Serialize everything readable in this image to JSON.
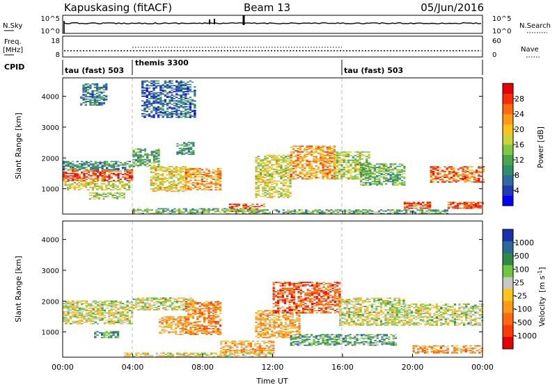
{
  "header": {
    "station": "Kapuskasing (fitACF)",
    "beam": "Beam 13",
    "date": "05/Jun/2016"
  },
  "noise_panel": {
    "left_label": "N.Sky",
    "right_label": "N.Search",
    "left_ticks": [
      "10^5",
      "10^0"
    ],
    "right_ticks": [
      "10^5",
      "10^0"
    ]
  },
  "freq_panel": {
    "left_label_1": "Freq.",
    "left_label_2": "[MHz]",
    "left_ticks": [
      "18",
      "8"
    ],
    "right_label": "Nave",
    "right_ticks": [
      "60",
      "0"
    ]
  },
  "cpid_panel": {
    "label": "CPID",
    "segments": [
      {
        "label": "tau (fast) 503",
        "start_hour": 0
      },
      {
        "label": "themis 3300",
        "start_hour": 4
      },
      {
        "label": "tau (fast) 503",
        "start_hour": 16
      }
    ]
  },
  "axes": {
    "x_label": "Time UT",
    "x_ticks": [
      "00:00",
      "04:00",
      "08:00",
      "12:00",
      "16:00",
      "20:00",
      "00:00"
    ],
    "y_label": "Slant Range [km]",
    "y_ticks": [
      "1000",
      "2000",
      "3000",
      "4000"
    ]
  },
  "colorbars": {
    "power": {
      "label": "Power [dB]",
      "ticks": [
        "4",
        "8",
        "12",
        "16",
        "20",
        "24",
        "28"
      ],
      "colors": [
        "#0000ff",
        "#1f3cb5",
        "#2e6b9e",
        "#2f8f6a",
        "#49a84c",
        "#7ec844",
        "#c9d43a",
        "#ffc21a",
        "#ff9a14",
        "#ff6a0e",
        "#ff2a08",
        "#e80000"
      ]
    },
    "velocity": {
      "label_main": "Velocity",
      "label_unit": "[m s",
      "label_sup": "-1",
      "label_close": "]",
      "ticks": [
        "1000",
        "500",
        "100",
        "25",
        "-25",
        "-100",
        "-500",
        "-1000"
      ],
      "colors": [
        "#1b2fb0",
        "#2a6a9a",
        "#2f8a4a",
        "#6cc83c",
        "#c8c8c0",
        "#ffc21a",
        "#ff9a14",
        "#ff6a0e",
        "#ff3a08",
        "#e80000"
      ]
    }
  },
  "chart_data": {
    "type": "heatmap",
    "x_range_hours": [
      0,
      24
    ],
    "y_range_km": [
      180,
      4600
    ],
    "power_regions": [
      {
        "t0": 0.0,
        "t1": 4.0,
        "r0": 1250,
        "r1": 1600,
        "level": 0.85
      },
      {
        "t0": 0.0,
        "t1": 4.0,
        "r0": 1600,
        "r1": 1900,
        "level": 0.3
      },
      {
        "t0": 0.1,
        "t1": 3.8,
        "r0": 950,
        "r1": 1250,
        "level": 0.55
      },
      {
        "t0": 1.5,
        "t1": 3.5,
        "r0": 650,
        "r1": 850,
        "level": 0.5
      },
      {
        "t0": 4.0,
        "t1": 5.5,
        "r0": 1700,
        "r1": 2300,
        "level": 0.35
      },
      {
        "t0": 5.0,
        "t1": 7.0,
        "r0": 900,
        "r1": 1700,
        "level": 0.6
      },
      {
        "t0": 7.0,
        "t1": 9.0,
        "r0": 950,
        "r1": 1650,
        "level": 0.7
      },
      {
        "t0": 9.5,
        "t1": 11.5,
        "r0": 250,
        "r1": 500,
        "level": 0.85
      },
      {
        "t0": 11.0,
        "t1": 13.0,
        "r0": 700,
        "r1": 2100,
        "level": 0.55
      },
      {
        "t0": 13.0,
        "t1": 15.5,
        "r0": 1300,
        "r1": 2400,
        "level": 0.7
      },
      {
        "t0": 15.5,
        "t1": 17.5,
        "r0": 1300,
        "r1": 2200,
        "level": 0.5
      },
      {
        "t0": 17.0,
        "t1": 19.5,
        "r0": 1100,
        "r1": 1800,
        "level": 0.4
      },
      {
        "t0": 19.5,
        "t1": 21.0,
        "r0": 350,
        "r1": 550,
        "level": 0.85
      },
      {
        "t0": 21.0,
        "t1": 24.0,
        "r0": 1200,
        "r1": 1700,
        "level": 0.8
      },
      {
        "t0": 22.0,
        "t1": 24.0,
        "r0": 350,
        "r1": 550,
        "level": 0.85
      },
      {
        "t0": 4.0,
        "t1": 11.0,
        "r0": 180,
        "r1": 350,
        "level": 0.4
      },
      {
        "t0": 11.0,
        "t1": 22.0,
        "r0": 180,
        "r1": 320,
        "level": 0.35
      },
      {
        "t0": 4.5,
        "t1": 7.5,
        "r0": 3300,
        "r1": 4500,
        "level": 0.2
      },
      {
        "t0": 1.0,
        "t1": 2.5,
        "r0": 3700,
        "r1": 4400,
        "level": 0.25
      },
      {
        "t0": 6.5,
        "t1": 7.5,
        "r0": 2100,
        "r1": 2500,
        "level": 0.3
      }
    ],
    "velocity_regions": [
      {
        "t0": 0.0,
        "t1": 4.0,
        "r0": 1250,
        "r1": 1600,
        "level": 0.45
      },
      {
        "t0": 0.0,
        "t1": 4.0,
        "r0": 1600,
        "r1": 2000,
        "level": 0.45
      },
      {
        "t0": 1.8,
        "t1": 3.2,
        "r0": 800,
        "r1": 1000,
        "level": 0.25
      },
      {
        "t0": 4.0,
        "t1": 7.5,
        "r0": 1700,
        "r1": 2100,
        "level": 0.45
      },
      {
        "t0": 5.5,
        "t1": 7.0,
        "r0": 900,
        "r1": 1500,
        "level": 0.6
      },
      {
        "t0": 7.0,
        "t1": 9.0,
        "r0": 900,
        "r1": 2000,
        "level": 0.7
      },
      {
        "t0": 9.0,
        "t1": 12.0,
        "r0": 300,
        "r1": 700,
        "level": 0.62
      },
      {
        "t0": 11.0,
        "t1": 13.5,
        "r0": 800,
        "r1": 1700,
        "level": 0.62
      },
      {
        "t0": 12.0,
        "t1": 15.8,
        "r0": 1600,
        "r1": 2600,
        "level": 0.8
      },
      {
        "t0": 15.8,
        "t1": 19.5,
        "r0": 1200,
        "r1": 2100,
        "level": 0.45
      },
      {
        "t0": 19.5,
        "t1": 24.0,
        "r0": 1200,
        "r1": 1900,
        "level": 0.45
      },
      {
        "t0": 20.0,
        "t1": 24.0,
        "r0": 300,
        "r1": 550,
        "level": 0.65
      },
      {
        "t0": 13.0,
        "t1": 19.0,
        "r0": 550,
        "r1": 900,
        "level": 0.3
      },
      {
        "t0": 3.5,
        "t1": 12.0,
        "r0": 180,
        "r1": 320,
        "level": 0.5
      }
    ]
  }
}
